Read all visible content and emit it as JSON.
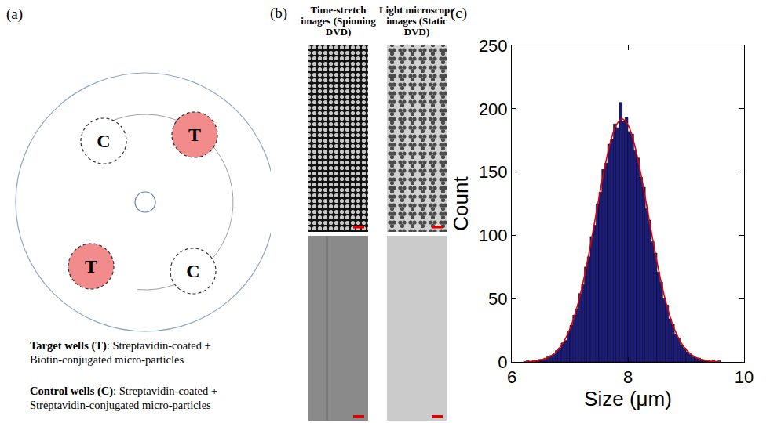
{
  "panel_a": {
    "label": "(a)",
    "wells": [
      {
        "text": "C",
        "type": "control"
      },
      {
        "text": "T",
        "type": "target"
      },
      {
        "text": "T",
        "type": "target"
      },
      {
        "text": "C",
        "type": "control"
      }
    ],
    "legend": [
      {
        "term": "Target wells (T)",
        "text": ": Streptavidin-coated + Biotin-conjugated micro-particles"
      },
      {
        "term": "Control wells (C)",
        "text": ": Streptavidin-coated + Streptavidin-conjugated micro-particles"
      }
    ]
  },
  "panel_b": {
    "label": "(b)",
    "columns": [
      {
        "title": "Time-stretch images (Spinning DVD)"
      },
      {
        "title": "Light microscope images (Static DVD)"
      }
    ]
  },
  "panel_c": {
    "label": "(c)"
  },
  "chart_data": {
    "type": "histogram",
    "x_label": "Size (μm)",
    "y_label": "Count",
    "bins": [
      6.2,
      6.25,
      6.3,
      6.35,
      6.4,
      6.45,
      6.5,
      6.55,
      6.6,
      6.65,
      6.7,
      6.75,
      6.8,
      6.85,
      6.9,
      6.95,
      7.0,
      7.05,
      7.1,
      7.15,
      7.2,
      7.25,
      7.3,
      7.35,
      7.4,
      7.45,
      7.5,
      7.55,
      7.6,
      7.65,
      7.7,
      7.75,
      7.8,
      7.85,
      7.9,
      7.95,
      8.0,
      8.05,
      8.1,
      8.15,
      8.2,
      8.25,
      8.3,
      8.35,
      8.4,
      8.45,
      8.5,
      8.55,
      8.6,
      8.65,
      8.7,
      8.75,
      8.8,
      8.85,
      8.9,
      8.95,
      9.0,
      9.05,
      9.1,
      9.15,
      9.2,
      9.25,
      9.3,
      9.35,
      9.4,
      9.45,
      9.5,
      9.55,
      9.6
    ],
    "counts": [
      0,
      1,
      0,
      1,
      1,
      2,
      2,
      3,
      4,
      5,
      6,
      9,
      11,
      15,
      17,
      24,
      29,
      37,
      42,
      54,
      61,
      75,
      83,
      99,
      108,
      125,
      134,
      152,
      157,
      172,
      176,
      188,
      185,
      205,
      190,
      193,
      182,
      180,
      167,
      161,
      146,
      138,
      121,
      112,
      95,
      86,
      71,
      63,
      50,
      45,
      34,
      30,
      22,
      19,
      13,
      11,
      8,
      6,
      4,
      3,
      3,
      2,
      1,
      1,
      0,
      1,
      0,
      1
    ],
    "color": "#1c1c80",
    "fit": {
      "type": "line",
      "color": "#e00000",
      "x": [
        6.2,
        6.3,
        6.4,
        6.5,
        6.6,
        6.7,
        6.8,
        6.9,
        7.0,
        7.1,
        7.2,
        7.3,
        7.4,
        7.5,
        7.6,
        7.7,
        7.8,
        7.9,
        8.0,
        8.1,
        8.2,
        8.3,
        8.4,
        8.5,
        8.6,
        8.7,
        8.8,
        8.9,
        9.0,
        9.1,
        9.2,
        9.3,
        9.4,
        9.5,
        9.6
      ],
      "y": [
        0.2,
        0.3,
        0.7,
        1.5,
        3.0,
        5.5,
        9.7,
        16.3,
        26.0,
        39.5,
        57.3,
        78.9,
        103.6,
        129.4,
        153.7,
        173.9,
        187.3,
        192,
        187.3,
        173.9,
        153.7,
        129.4,
        103.6,
        78.9,
        57.3,
        39.5,
        26.0,
        16.3,
        9.7,
        5.5,
        3.0,
        1.5,
        0.7,
        0.3,
        0.2
      ]
    },
    "xlim": [
      6,
      10
    ],
    "xticks": [
      6,
      8,
      10
    ],
    "ylim": [
      0,
      250
    ],
    "yticks": [
      0,
      50,
      100,
      150,
      200,
      250
    ],
    "grid": false
  }
}
